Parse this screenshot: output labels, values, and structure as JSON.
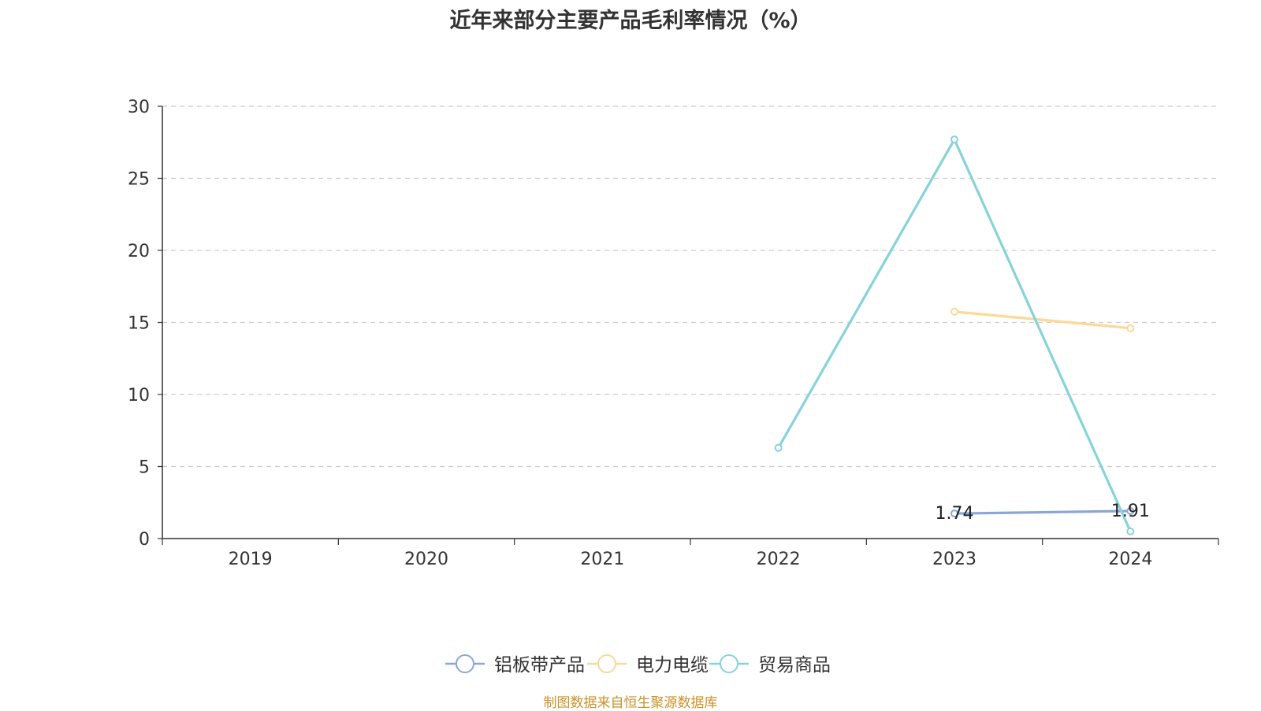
{
  "chart_data": {
    "type": "line",
    "title": "近年来部分主要产品毛利率情况（%）",
    "categories": [
      "2019",
      "2020",
      "2021",
      "2022",
      "2023",
      "2024"
    ],
    "ylim": [
      0,
      30
    ],
    "yticks": [
      0,
      5,
      10,
      15,
      20,
      25,
      30
    ],
    "grid": true,
    "legend_position": "bottom",
    "series": [
      {
        "name": "铝板带产品",
        "color": "#8ba7d6",
        "values": [
          null,
          null,
          null,
          null,
          1.74,
          1.91
        ],
        "labels": [
          "",
          "",
          "",
          "",
          "1.74",
          "1.91"
        ]
      },
      {
        "name": "电力电缆",
        "color": "#fcd899",
        "values": [
          null,
          null,
          null,
          null,
          15.75,
          14.6
        ],
        "labels": [
          "",
          "",
          "",
          "",
          "",
          ""
        ]
      },
      {
        "name": "贸易商品",
        "color": "#86d3da",
        "values": [
          null,
          null,
          null,
          6.3,
          27.7,
          0.5
        ],
        "labels": [
          "",
          "",
          "",
          "",
          "",
          ""
        ]
      }
    ]
  },
  "source": "制图数据来自恒生聚源数据库"
}
